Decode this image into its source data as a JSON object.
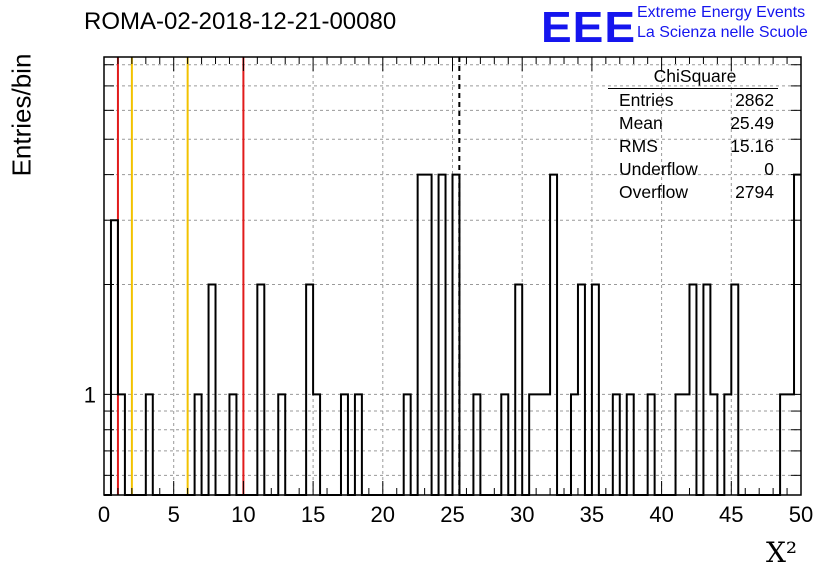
{
  "header": {
    "run_title": "ROMA-02-2018-12-21-00080",
    "logo_text": "EEE",
    "brand_line1": "Extreme Energy Events",
    "brand_line2": "La Scienza nelle Scuole"
  },
  "colors": {
    "brand_blue": "#1515ee",
    "red_line": "#e11b1b",
    "yellow_line": "#f2c200",
    "grid": "#9a9a9a"
  },
  "stats": {
    "title": "ChiSquare",
    "rows": [
      {
        "label": "Entries",
        "value": "2862"
      },
      {
        "label": "Mean",
        "value": "25.49"
      },
      {
        "label": "RMS",
        "value": "15.16"
      },
      {
        "label": "Underflow",
        "value": "0"
      },
      {
        "label": "Overflow",
        "value": "2794"
      }
    ]
  },
  "chart_data": {
    "type": "bar",
    "histogram": "step",
    "title": "ROMA-02-2018-12-21-00080",
    "xlabel": "X²",
    "ylabel": "Entries/bin",
    "xlim": [
      0,
      50
    ],
    "ylim": [
      0.53,
      8.4
    ],
    "yscale": "log",
    "grid": true,
    "bin_width": 0.5,
    "x_ticks": [
      "0",
      "5",
      "10",
      "15",
      "20",
      "25",
      "30",
      "35",
      "40",
      "45",
      "50"
    ],
    "y_tick_labels": [
      "1"
    ],
    "bins": [
      {
        "x": 0.5,
        "y": 3
      },
      {
        "x": 1.0,
        "y": 1
      },
      {
        "x": 3.0,
        "y": 1
      },
      {
        "x": 6.5,
        "y": 1
      },
      {
        "x": 7.5,
        "y": 2
      },
      {
        "x": 9.0,
        "y": 1
      },
      {
        "x": 11.0,
        "y": 2
      },
      {
        "x": 12.5,
        "y": 1
      },
      {
        "x": 14.5,
        "y": 2
      },
      {
        "x": 15.0,
        "y": 1
      },
      {
        "x": 17.0,
        "y": 1
      },
      {
        "x": 18.0,
        "y": 1
      },
      {
        "x": 21.5,
        "y": 1
      },
      {
        "x": 22.5,
        "y": 4
      },
      {
        "x": 23.0,
        "y": 4
      },
      {
        "x": 24.0,
        "y": 4
      },
      {
        "x": 25.0,
        "y": 4
      },
      {
        "x": 26.5,
        "y": 1
      },
      {
        "x": 28.5,
        "y": 1
      },
      {
        "x": 29.5,
        "y": 2
      },
      {
        "x": 30.5,
        "y": 1
      },
      {
        "x": 31.0,
        "y": 1
      },
      {
        "x": 31.5,
        "y": 1
      },
      {
        "x": 32.0,
        "y": 4
      },
      {
        "x": 33.5,
        "y": 1
      },
      {
        "x": 34.0,
        "y": 2
      },
      {
        "x": 35.0,
        "y": 2
      },
      {
        "x": 36.5,
        "y": 1
      },
      {
        "x": 37.5,
        "y": 1
      },
      {
        "x": 39.0,
        "y": 1
      },
      {
        "x": 41.0,
        "y": 1
      },
      {
        "x": 41.5,
        "y": 1
      },
      {
        "x": 42.0,
        "y": 2
      },
      {
        "x": 43.0,
        "y": 2
      },
      {
        "x": 43.5,
        "y": 1
      },
      {
        "x": 44.5,
        "y": 1
      },
      {
        "x": 45.0,
        "y": 2
      },
      {
        "x": 48.5,
        "y": 1
      },
      {
        "x": 49.0,
        "y": 1
      },
      {
        "x": 49.5,
        "y": 4
      }
    ],
    "reference_lines": [
      {
        "x": 1.0,
        "color": "red",
        "style": "solid"
      },
      {
        "x": 2.0,
        "color": "yellow",
        "style": "solid"
      },
      {
        "x": 6.0,
        "color": "yellow",
        "style": "solid"
      },
      {
        "x": 10.0,
        "color": "red",
        "style": "solid"
      },
      {
        "x": 25.49,
        "color": "black",
        "style": "dashed"
      }
    ]
  }
}
